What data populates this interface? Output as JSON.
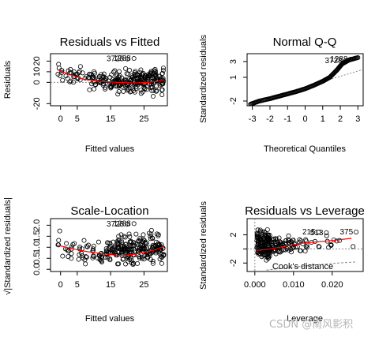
{
  "chart_data": [
    {
      "type": "scatter",
      "title": "Residuals vs Fitted",
      "xlabel": "Fitted values",
      "ylabel": "Residuals",
      "xlim": [
        -3,
        32
      ],
      "ylim": [
        -22,
        27
      ],
      "xticks": [
        0,
        5,
        15,
        25
      ],
      "yticks": [
        -20,
        0,
        10,
        20
      ],
      "reference_line": {
        "y": 0,
        "style": "dotted"
      },
      "smooth_color": "#ff0000",
      "smooth": [
        [
          -1,
          12
        ],
        [
          3,
          7
        ],
        [
          7,
          3
        ],
        [
          12,
          1
        ],
        [
          17,
          0
        ],
        [
          22,
          -0.5
        ],
        [
          26,
          0
        ],
        [
          29,
          1
        ],
        [
          31,
          2.5
        ]
      ],
      "point_groups": [
        {
          "x": [
            -1,
            1
          ],
          "y": [
            -8,
            22
          ],
          "n": 8
        },
        {
          "x": [
            1,
            8
          ],
          "y": [
            -6,
            18
          ],
          "n": 25
        },
        {
          "x": [
            8,
            15
          ],
          "y": [
            -10,
            14
          ],
          "n": 45
        },
        {
          "x": [
            15,
            24
          ],
          "y": [
            -14,
            16
          ],
          "n": 110
        },
        {
          "x": [
            24,
            31
          ],
          "y": [
            -16,
            20
          ],
          "n": 95
        }
      ],
      "outliers": [
        {
          "x": 20,
          "y": 22,
          "label": "3728"
        },
        {
          "x": 22,
          "y": 22.5,
          "label": "1288"
        }
      ]
    },
    {
      "type": "scatter",
      "title": "Normal Q-Q",
      "xlabel": "Theoretical Quantiles",
      "ylabel": "Standardized residuals",
      "xlim": [
        -3.3,
        3.3
      ],
      "ylim": [
        -2.6,
        4.0
      ],
      "xticks": [
        -3,
        -2,
        -1,
        0,
        1,
        2,
        3
      ],
      "yticks": [
        -2,
        1,
        3
      ],
      "reference_line": {
        "from": [
          -3.3,
          -2.4
        ],
        "to": [
          3.3,
          2.0
        ],
        "style": "dotted"
      },
      "qq_curve": [
        [
          -3.1,
          -2.4
        ],
        [
          -2.6,
          -2.0
        ],
        [
          -2.0,
          -1.7
        ],
        [
          -1.5,
          -1.4
        ],
        [
          -1.0,
          -1.1
        ],
        [
          -0.5,
          -0.8
        ],
        [
          0,
          -0.45
        ],
        [
          0.5,
          0
        ],
        [
          1.0,
          0.5
        ],
        [
          1.4,
          1.0
        ],
        [
          1.8,
          1.9
        ],
        [
          2.1,
          2.7
        ],
        [
          2.5,
          3.2
        ],
        [
          3.0,
          3.5
        ]
      ],
      "n_points": 150,
      "outliers": [
        {
          "x": 2.3,
          "y": 3.1,
          "label": "3728"
        },
        {
          "x": 2.6,
          "y": 3.3,
          "label": "1288"
        }
      ]
    },
    {
      "type": "scatter",
      "title": "Scale-Location",
      "xlabel": "Fitted values",
      "ylabel": "√|Standardized residuals|",
      "xlim": [
        -3,
        32
      ],
      "ylim": [
        -0.1,
        2.3
      ],
      "xticks": [
        0,
        5,
        15,
        25
      ],
      "yticks": [
        0.0,
        0.5,
        1.0,
        1.5,
        2.0
      ],
      "smooth_color": "#ff0000",
      "smooth": [
        [
          -1,
          1.1
        ],
        [
          3,
          0.95
        ],
        [
          8,
          0.8
        ],
        [
          13,
          0.7
        ],
        [
          18,
          0.62
        ],
        [
          22,
          0.68
        ],
        [
          26,
          0.8
        ],
        [
          29,
          0.92
        ],
        [
          31,
          1.05
        ]
      ],
      "point_groups": [
        {
          "x": [
            -1,
            2
          ],
          "y": [
            0.5,
            1.9
          ],
          "n": 8
        },
        {
          "x": [
            2,
            9
          ],
          "y": [
            0.1,
            1.6
          ],
          "n": 25
        },
        {
          "x": [
            9,
            16
          ],
          "y": [
            0.05,
            1.5
          ],
          "n": 45
        },
        {
          "x": [
            16,
            24
          ],
          "y": [
            0.0,
            1.8
          ],
          "n": 110
        },
        {
          "x": [
            24,
            31
          ],
          "y": [
            0.0,
            1.9
          ],
          "n": 95
        }
      ],
      "outliers": [
        {
          "x": 20,
          "y": 2.05,
          "label": "3728"
        },
        {
          "x": 22,
          "y": 2.07,
          "label": "1288"
        }
      ]
    },
    {
      "type": "scatter",
      "title": "Residuals vs Leverage",
      "xlabel": "Leverage",
      "ylabel": "Standardized residuals",
      "xlim": [
        -0.002,
        0.028
      ],
      "ylim": [
        -3.2,
        4.3
      ],
      "xticks": [
        0.0,
        0.01,
        0.02
      ],
      "xtick_labels": [
        "0.000",
        "0.010",
        "0.020"
      ],
      "yticks": [
        -2,
        0,
        2
      ],
      "yticks_labelled": [
        -2,
        2
      ],
      "reference_line": {
        "y": 0,
        "style": "dotted"
      },
      "vertical_line": {
        "x": 0,
        "style": "dotted"
      },
      "smooth_color": "#ff0000",
      "smooth": [
        [
          0.0005,
          -0.2
        ],
        [
          0.004,
          0
        ],
        [
          0.008,
          0.4
        ],
        [
          0.012,
          0.8
        ],
        [
          0.016,
          1.0
        ],
        [
          0.02,
          1.2
        ],
        [
          0.025,
          1.5
        ]
      ],
      "cooks_label": "Cook's distance",
      "cooks_color": "#888888",
      "cooks_curve": [
        [
          0.003,
          -3.0
        ],
        [
          0.008,
          -2.7
        ],
        [
          0.014,
          -2.35
        ],
        [
          0.02,
          -2.05
        ],
        [
          0.026,
          -1.85
        ]
      ],
      "point_groups": [
        {
          "x": [
            0.0005,
            0.004
          ],
          "y": [
            -2.8,
            3.5
          ],
          "n": 140
        },
        {
          "x": [
            0.004,
            0.009
          ],
          "y": [
            -1.5,
            2.5
          ],
          "n": 60
        },
        {
          "x": [
            0.009,
            0.014
          ],
          "y": [
            -1.0,
            2.0
          ],
          "n": 25
        },
        {
          "x": [
            0.014,
            0.026
          ],
          "y": [
            -0.6,
            2.4
          ],
          "n": 14
        }
      ],
      "outliers": [
        {
          "x": 0.0165,
          "y": 2.4,
          "label": "215"
        },
        {
          "x": 0.0185,
          "y": 2.3,
          "label": "513"
        },
        {
          "x": 0.0262,
          "y": 2.4,
          "label": "375"
        }
      ]
    }
  ],
  "watermark": "CSDN @南风影积"
}
